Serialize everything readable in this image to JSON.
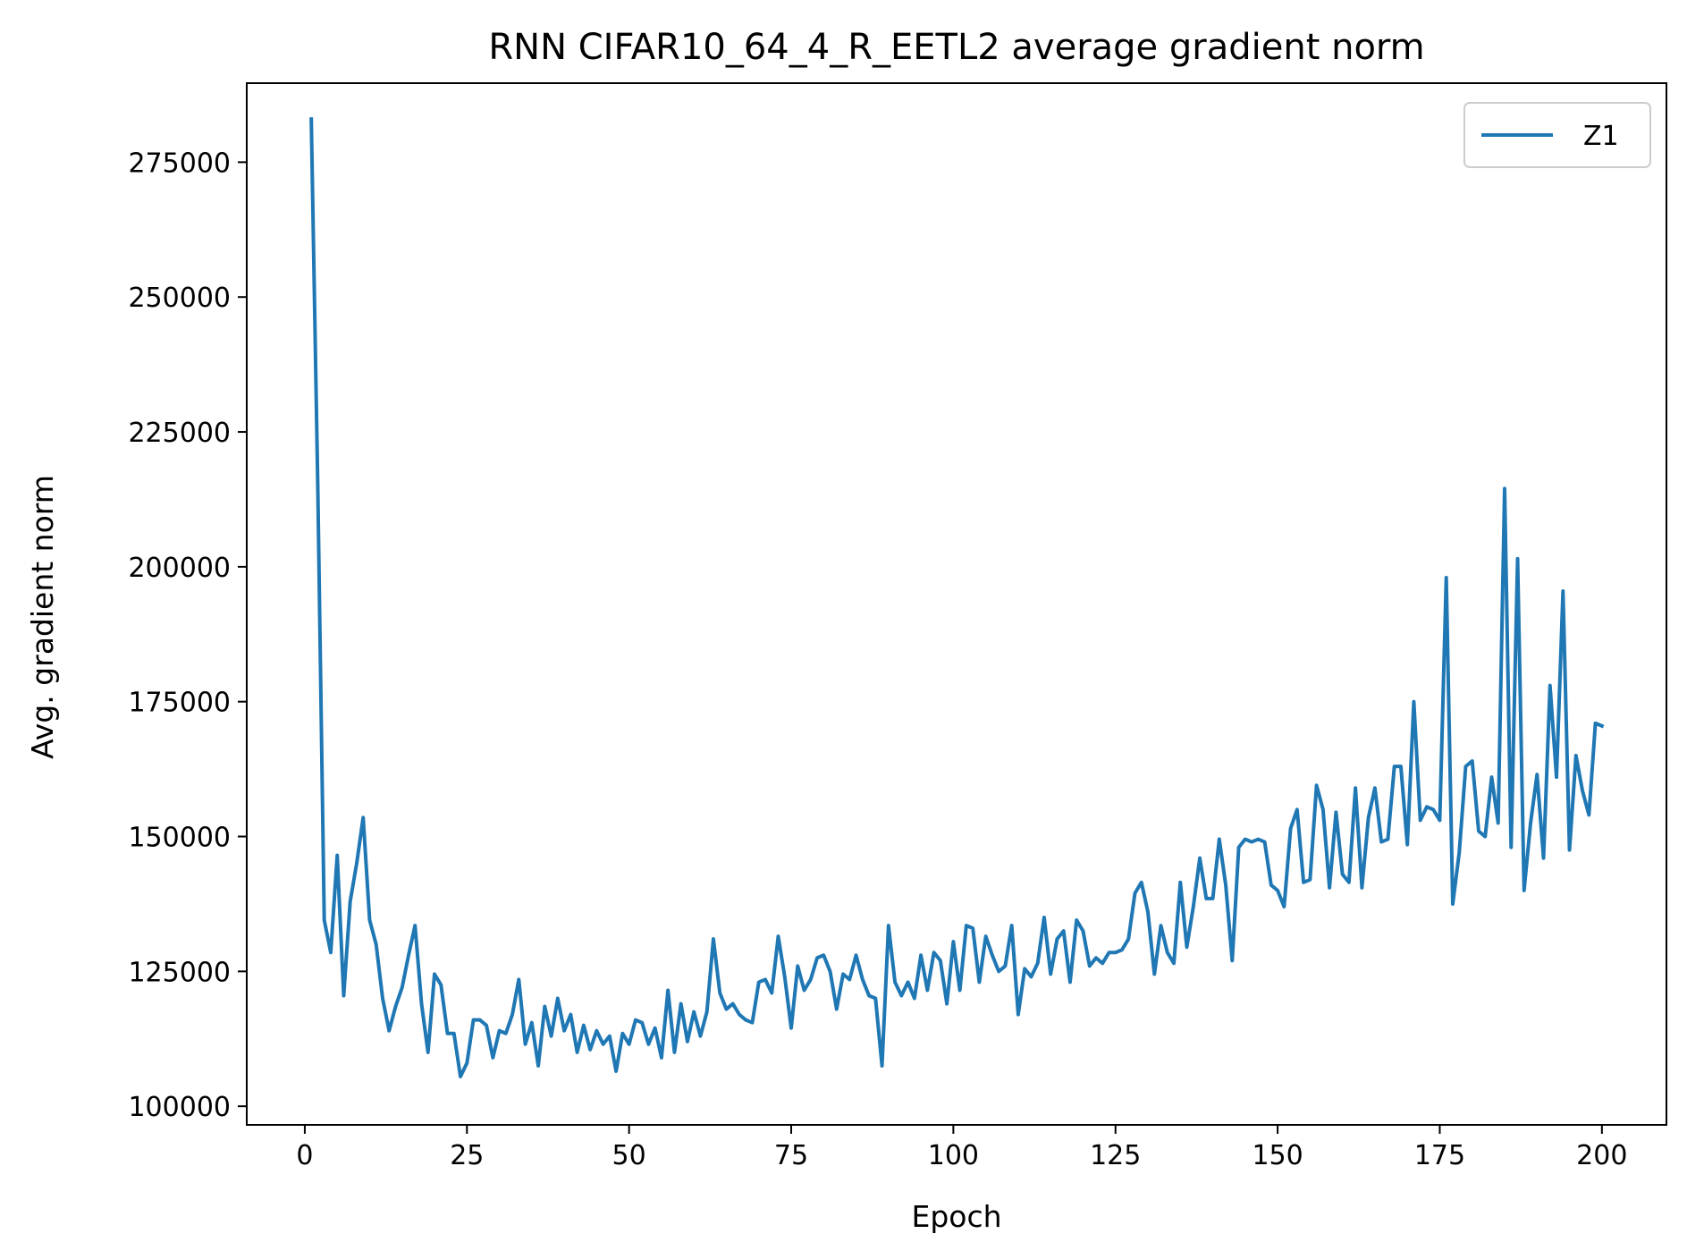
{
  "chart_data": {
    "type": "line",
    "title": "RNN CIFAR10_64_4_R_EETL2 average gradient norm",
    "xlabel": "Epoch",
    "ylabel": "Avg. gradient norm",
    "xlim": [
      -8.95,
      209.95
    ],
    "ylim": [
      96550,
      289650
    ],
    "xticks": [
      0,
      25,
      50,
      75,
      100,
      125,
      150,
      175,
      200
    ],
    "yticks": [
      100000,
      125000,
      150000,
      175000,
      200000,
      225000,
      250000,
      275000
    ],
    "grid": false,
    "legend_position": "top-right",
    "colors": {
      "series": "#1f77b4"
    },
    "series": [
      {
        "name": "Z1",
        "x": [
          1,
          2,
          3,
          4,
          5,
          6,
          7,
          8,
          9,
          10,
          11,
          12,
          13,
          14,
          15,
          16,
          17,
          18,
          19,
          20,
          21,
          22,
          23,
          24,
          25,
          26,
          27,
          28,
          29,
          30,
          31,
          32,
          33,
          34,
          35,
          36,
          37,
          38,
          39,
          40,
          41,
          42,
          43,
          44,
          45,
          46,
          47,
          48,
          49,
          50,
          51,
          52,
          53,
          54,
          55,
          56,
          57,
          58,
          59,
          60,
          61,
          62,
          63,
          64,
          65,
          66,
          67,
          68,
          69,
          70,
          71,
          72,
          73,
          74,
          75,
          76,
          77,
          78,
          79,
          80,
          81,
          82,
          83,
          84,
          85,
          86,
          87,
          88,
          89,
          90,
          91,
          92,
          93,
          94,
          95,
          96,
          97,
          98,
          99,
          100,
          101,
          102,
          103,
          104,
          105,
          106,
          107,
          108,
          109,
          110,
          111,
          112,
          113,
          114,
          115,
          116,
          117,
          118,
          119,
          120,
          121,
          122,
          123,
          124,
          125,
          126,
          127,
          128,
          129,
          130,
          131,
          132,
          133,
          134,
          135,
          136,
          137,
          138,
          139,
          140,
          141,
          142,
          143,
          144,
          145,
          146,
          147,
          148,
          149,
          150,
          151,
          152,
          153,
          154,
          155,
          156,
          157,
          158,
          159,
          160,
          161,
          162,
          163,
          164,
          165,
          166,
          167,
          168,
          169,
          170,
          171,
          172,
          173,
          174,
          175,
          176,
          177,
          178,
          179,
          180,
          181,
          182,
          183,
          184,
          185,
          186,
          187,
          188,
          189,
          190,
          191,
          192,
          193,
          194,
          195,
          196,
          197,
          198,
          199,
          200
        ],
        "y": [
          283000,
          215000,
          134500,
          128500,
          146500,
          120500,
          138000,
          145000,
          153500,
          134500,
          130000,
          120000,
          114000,
          118500,
          122000,
          128000,
          133500,
          119000,
          110000,
          124500,
          122500,
          113500,
          113500,
          105500,
          108000,
          116000,
          116000,
          115000,
          109000,
          114000,
          113500,
          117000,
          123500,
          111500,
          115500,
          107500,
          118500,
          113000,
          120000,
          114000,
          117000,
          110000,
          115000,
          110500,
          114000,
          111500,
          113000,
          106500,
          113500,
          111500,
          116000,
          115500,
          111500,
          114500,
          109000,
          121500,
          110000,
          119000,
          112000,
          117500,
          113000,
          117500,
          131000,
          121000,
          118000,
          119000,
          117000,
          116000,
          115500,
          123000,
          123500,
          121000,
          131500,
          124000,
          114500,
          126000,
          121500,
          123500,
          127500,
          128000,
          125000,
          118000,
          124500,
          123500,
          128000,
          123500,
          120500,
          120000,
          107500,
          133500,
          123000,
          120500,
          123000,
          120000,
          128000,
          121500,
          128500,
          127000,
          119000,
          130500,
          121500,
          133500,
          133000,
          123000,
          131500,
          128000,
          125000,
          126000,
          133500,
          117000,
          125500,
          124000,
          126500,
          135000,
          124500,
          131000,
          132500,
          123000,
          134500,
          132500,
          126000,
          127500,
          126500,
          128500,
          128500,
          129000,
          131000,
          139500,
          141500,
          136000,
          124500,
          133500,
          128500,
          126500,
          141500,
          129500,
          137000,
          146000,
          138500,
          138500,
          149500,
          141000,
          127000,
          148000,
          149500,
          149000,
          149500,
          149000,
          141000,
          140000,
          137000,
          151500,
          155000,
          141500,
          142000,
          159500,
          155000,
          140500,
          154500,
          143000,
          141500,
          159000,
          140500,
          153500,
          159000,
          149000,
          149500,
          163000,
          163000,
          148500,
          175000,
          153000,
          155500,
          155000,
          153000,
          198000,
          137500,
          147000,
          163000,
          164000,
          151000,
          150000,
          161000,
          152500,
          214500,
          148000,
          201500,
          140000,
          152500,
          161500,
          146000,
          178000,
          161000,
          195500,
          147500,
          165000,
          158500,
          154000,
          171000,
          170500
        ]
      }
    ]
  }
}
